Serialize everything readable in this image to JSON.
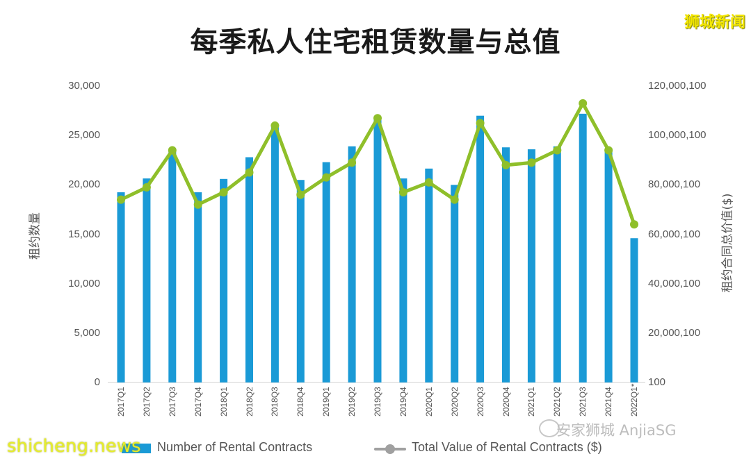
{
  "title": "每季私人住宅租赁数量与总值",
  "brand": "狮城新闻",
  "watermarks": {
    "left": "shicheng.news",
    "right": "安家狮城 AnjiaSG"
  },
  "left_axis": {
    "label": "租约数量",
    "ticks": [
      "30,000",
      "25,000",
      "20,000",
      "15,000",
      "10,000",
      "5,000",
      "0"
    ]
  },
  "right_axis": {
    "label": "租约合同总价值($)",
    "ticks": [
      "120,000,100",
      "100,000,100",
      "80,000,100",
      "60,000,100",
      "40,000,100",
      "20,000,100",
      "100"
    ]
  },
  "legend": {
    "bars": "Number of Rental Contracts",
    "line": "Total Value of Rental Contracts ($)"
  },
  "colors": {
    "bar": "#1a9ad6",
    "line": "#8fbf2a",
    "legend_line": "#a0a0a0"
  },
  "chart_data": {
    "type": "bar",
    "title": "每季私人住宅租赁数量与总值",
    "xlabel": "",
    "ylabel": "租约数量",
    "y2label": "租约合同总价值($)",
    "ylim": [
      0,
      30000
    ],
    "y2lim": [
      100,
      120000100
    ],
    "grid": false,
    "legend_position": "bottom",
    "categories": [
      "2017Q1",
      "2017Q2",
      "2017Q3",
      "2017Q4",
      "2018Q1",
      "2018Q2",
      "2018Q3",
      "2018Q4",
      "2019Q1",
      "2019Q2",
      "2019Q3",
      "2019Q4",
      "2020Q1",
      "2020Q2",
      "2020Q3",
      "2020Q4",
      "2021Q1",
      "2021Q2",
      "2021Q3",
      "2021Q4",
      "2022Q1*"
    ],
    "series": [
      {
        "name": "Number of Rental Contracts",
        "type": "bar",
        "axis": "left",
        "values": [
          19250,
          20650,
          23400,
          19250,
          20600,
          22800,
          25850,
          20500,
          22300,
          23900,
          26600,
          20650,
          21650,
          20000,
          27000,
          23800,
          23600,
          23900,
          27200,
          23700,
          14600
        ]
      },
      {
        "name": "Total Value of Rental Contracts ($)",
        "type": "line",
        "axis": "right",
        "values": [
          74000000,
          79000000,
          94000000,
          72000000,
          77000000,
          85000000,
          104000000,
          76000000,
          83000000,
          89000000,
          107000000,
          77000000,
          81000000,
          74000000,
          105000000,
          88000000,
          89000000,
          94000000,
          113000000,
          94000000,
          64000000
        ]
      }
    ]
  }
}
